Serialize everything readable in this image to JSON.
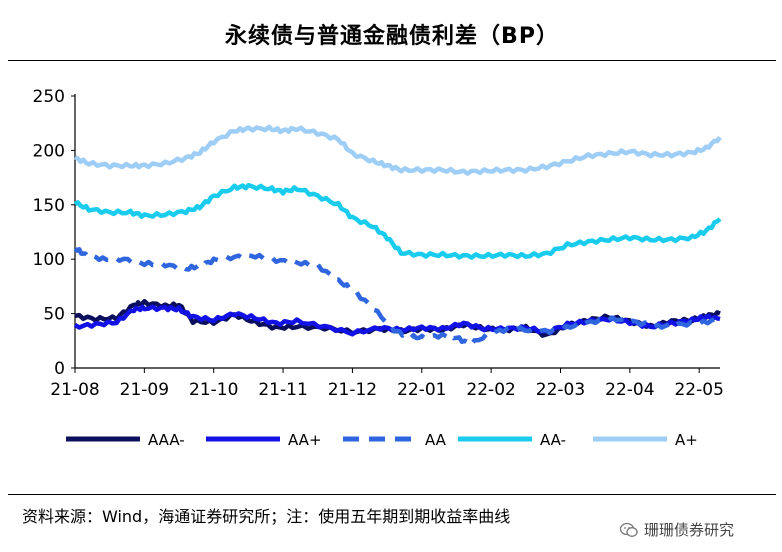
{
  "title": "永续债与普通金融债利差（BP）",
  "source": "资料来源：Wind，海通证券研究所；注：使用五年期到期收益率曲线",
  "watermark": "珊珊债券研究",
  "chart_data": {
    "type": "line",
    "ylim": [
      0,
      250
    ],
    "yticks": [
      0,
      50,
      100,
      150,
      200,
      250
    ],
    "xticks": [
      "21-08",
      "21-09",
      "21-10",
      "21-11",
      "21-12",
      "22-01",
      "22-02",
      "22-03",
      "22-04",
      "22-05"
    ],
    "x_months": [
      0,
      1,
      2,
      3,
      4,
      5,
      6,
      7,
      8,
      9
    ],
    "legend_position": "bottom",
    "series": [
      {
        "name": "AAA-",
        "color": "#0b0f5c",
        "dash": "solid",
        "x": [
          0,
          0.3,
          0.6,
          0.85,
          1.0,
          1.3,
          1.5,
          1.7,
          2.0,
          2.3,
          2.6,
          2.9,
          3.2,
          3.6,
          4.0,
          4.4,
          4.7,
          5.0,
          5.3,
          5.6,
          5.9,
          6.2,
          6.5,
          6.8,
          7.1,
          7.4,
          7.7,
          8.0,
          8.3,
          8.6,
          8.9,
          9.1,
          9.3
        ],
        "values": [
          48,
          45,
          46,
          58,
          60,
          57,
          58,
          43,
          42,
          49,
          42,
          37,
          38,
          37,
          33,
          36,
          34,
          36,
          35,
          40,
          36,
          35,
          37,
          30,
          39,
          44,
          47,
          43,
          38,
          43,
          44,
          48,
          50
        ]
      },
      {
        "name": "AA+",
        "color": "#1212e6",
        "dash": "solid",
        "x": [
          0,
          0.3,
          0.6,
          0.85,
          1.0,
          1.3,
          1.5,
          1.7,
          2.0,
          2.3,
          2.6,
          2.9,
          3.2,
          3.6,
          4.0,
          4.4,
          4.7,
          5.0,
          5.3,
          5.6,
          5.9,
          6.2,
          6.5,
          6.8,
          7.1,
          7.4,
          7.7,
          8.0,
          8.3,
          8.6,
          8.9,
          9.1,
          9.3
        ],
        "values": [
          38,
          40,
          42,
          54,
          55,
          55,
          54,
          47,
          44,
          50,
          46,
          41,
          43,
          38,
          32,
          37,
          35,
          37,
          36,
          41,
          36,
          36,
          37,
          33,
          40,
          43,
          45,
          42,
          38,
          41,
          44,
          47,
          45
        ]
      },
      {
        "name": "AA",
        "color": "#2f66e0",
        "dash": "dashed",
        "x": [
          0,
          0.15,
          0.4,
          0.7,
          1.0,
          1.3,
          1.6,
          1.8,
          2.0,
          2.3,
          2.6,
          2.9,
          3.2,
          3.5,
          3.8,
          4.0,
          4.3,
          4.6,
          4.8,
          5.0,
          5.3,
          5.5,
          5.7,
          6.0,
          6.3,
          6.6,
          6.9,
          7.2,
          7.5,
          7.8,
          8.1,
          8.4,
          8.7,
          9.0,
          9.3
        ],
        "values": [
          110,
          104,
          100,
          100,
          96,
          95,
          91,
          94,
          99,
          102,
          103,
          99,
          97,
          94,
          80,
          72,
          55,
          35,
          29,
          28,
          30,
          28,
          22,
          32,
          37,
          34,
          34,
          39,
          43,
          45,
          42,
          38,
          40,
          41,
          45
        ]
      },
      {
        "name": "AA-",
        "color": "#19ccee",
        "dash": "solid",
        "x": [
          0,
          0.2,
          0.5,
          0.8,
          1.0,
          1.3,
          1.6,
          1.8,
          2.0,
          2.3,
          2.5,
          2.8,
          3.0,
          3.2,
          3.5,
          3.8,
          4.0,
          4.3,
          4.5,
          4.7,
          5.0,
          5.3,
          5.6,
          5.9,
          6.2,
          6.5,
          6.8,
          7.1,
          7.4,
          7.7,
          8.0,
          8.3,
          8.6,
          8.9,
          9.1,
          9.3
        ],
        "values": [
          152,
          146,
          143,
          143,
          140,
          141,
          144,
          148,
          158,
          166,
          167,
          165,
          162,
          165,
          158,
          150,
          138,
          130,
          120,
          106,
          104,
          104,
          103,
          103,
          104,
          103,
          105,
          113,
          116,
          118,
          120,
          118,
          118,
          120,
          126,
          137
        ]
      },
      {
        "name": "A+",
        "color": "#9ecdf5",
        "dash": "solid",
        "x": [
          0,
          0.2,
          0.5,
          0.8,
          1.0,
          1.3,
          1.6,
          1.8,
          2.0,
          2.3,
          2.5,
          2.8,
          3.0,
          3.2,
          3.5,
          3.8,
          4.0,
          4.3,
          4.5,
          4.7,
          5.0,
          5.3,
          5.6,
          5.9,
          6.2,
          6.5,
          6.8,
          7.1,
          7.4,
          7.7,
          8.0,
          8.3,
          8.6,
          8.9,
          9.1,
          9.3
        ],
        "values": [
          193,
          188,
          186,
          186,
          186,
          188,
          193,
          198,
          208,
          218,
          220,
          220,
          218,
          220,
          216,
          210,
          197,
          190,
          186,
          182,
          182,
          182,
          180,
          181,
          182,
          182,
          185,
          190,
          195,
          197,
          199,
          196,
          196,
          198,
          202,
          212
        ]
      }
    ]
  }
}
